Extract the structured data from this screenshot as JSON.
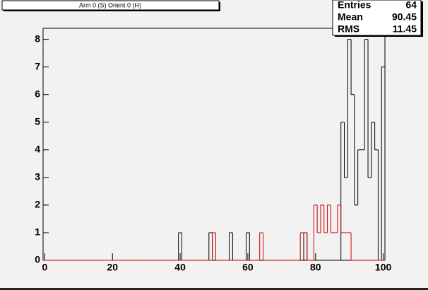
{
  "chart_data": {
    "type": "histogram",
    "title": "Arm 0 (S) Orient 0 (H)",
    "bins": [
      -0.5,
      0.5,
      1.5,
      2.5,
      3.5,
      4.5,
      5.5,
      6.5,
      7.5,
      8.5,
      9.5,
      10.5,
      11.5,
      12.5,
      13.5,
      14.5,
      15.5,
      16.5,
      17.5,
      18.5,
      19.5,
      20.5,
      21.5,
      22.5,
      23.5,
      24.5,
      25.5,
      26.5,
      27.5,
      28.5,
      29.5,
      30.5,
      31.5,
      32.5,
      33.5,
      34.5,
      35.5,
      36.5,
      37.5,
      38.5,
      39.5,
      40.5,
      41.5,
      42.5,
      43.5,
      44.5,
      45.5,
      46.5,
      47.5,
      48.5,
      49.5,
      50.5,
      51.5,
      52.5,
      53.5,
      54.5,
      55.5,
      56.5,
      57.5,
      58.5,
      59.5,
      60.5,
      61.5,
      62.5,
      63.5,
      64.5,
      65.5,
      66.5,
      67.5,
      68.5,
      69.5,
      70.5,
      71.5,
      72.5,
      73.5,
      74.5,
      75.5,
      76.5,
      77.5,
      78.5,
      79.5,
      80.5,
      81.5,
      82.5,
      83.5,
      84.5,
      85.5,
      86.5,
      87.5,
      88.5,
      89.5,
      90.5,
      91.5,
      92.5,
      93.5,
      94.5,
      95.5,
      96.5,
      97.5,
      98.5,
      99.5,
      100.5
    ],
    "series": [
      {
        "color": "#000000",
        "values": [
          0,
          0,
          0,
          0,
          0,
          0,
          0,
          0,
          0,
          0,
          0,
          0,
          0,
          0,
          0,
          0,
          0,
          0,
          0,
          0,
          0,
          0,
          0,
          0,
          0,
          0,
          0,
          0,
          0,
          0,
          0,
          0,
          0,
          0,
          0,
          0,
          0,
          0,
          0,
          0,
          1,
          0,
          0,
          0,
          0,
          0,
          0,
          0,
          0,
          1,
          0,
          0,
          0,
          0,
          0,
          1,
          0,
          0,
          0,
          0,
          1,
          0,
          0,
          0,
          0,
          0,
          0,
          0,
          0,
          0,
          0,
          0,
          0,
          0,
          0,
          0,
          0,
          1,
          0,
          0,
          0,
          0,
          0,
          0,
          0,
          0,
          0,
          0,
          5,
          3,
          8,
          6,
          2,
          4,
          4,
          8,
          3,
          5,
          4,
          0,
          7
        ]
      },
      {
        "color": "#cc0000",
        "values": [
          0,
          0,
          0,
          0,
          0,
          0,
          0,
          0,
          0,
          0,
          0,
          0,
          0,
          0,
          0,
          0,
          0,
          0,
          0,
          0,
          0,
          0,
          0,
          0,
          0,
          0,
          0,
          0,
          0,
          0,
          0,
          0,
          0,
          0,
          0,
          0,
          0,
          0,
          0,
          0,
          0,
          0,
          0,
          0,
          0,
          0,
          0,
          0,
          0,
          0,
          1,
          0,
          0,
          0,
          0,
          0,
          0,
          0,
          0,
          0,
          0,
          0,
          0,
          0,
          1,
          0,
          0,
          0,
          0,
          0,
          0,
          0,
          0,
          0,
          0,
          0,
          1,
          1,
          0,
          0,
          2,
          1,
          2,
          1,
          2,
          1,
          1,
          2,
          1,
          1,
          1,
          0,
          0,
          0,
          0,
          0,
          0,
          0,
          0,
          0,
          0
        ]
      }
    ],
    "xlim": [
      -0.5,
      100.5
    ],
    "ylim": [
      0,
      8.4
    ],
    "xticks": [
      0,
      20,
      40,
      60,
      80,
      100
    ],
    "yticks": [
      0,
      1,
      2,
      3,
      4,
      5,
      6,
      7,
      8
    ],
    "stats": [
      {
        "label": "Entries",
        "value": 64
      },
      {
        "label": "Mean",
        "value": 90.45
      },
      {
        "label": "RMS",
        "value": 11.45
      }
    ]
  }
}
